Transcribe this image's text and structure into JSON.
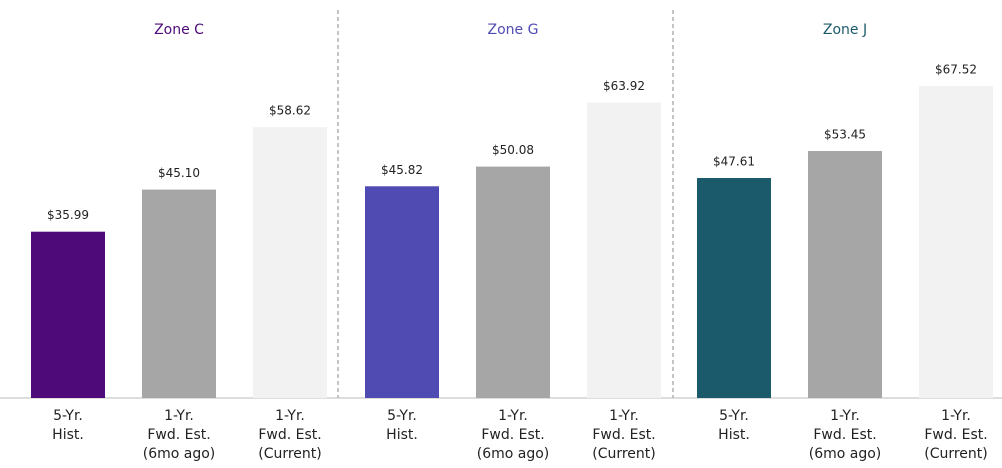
{
  "chart_data": [
    {
      "type": "bar",
      "title": "Zone C",
      "categories": [
        [
          "5-Yr.",
          "Hist."
        ],
        [
          "1-Yr.",
          "Fwd. Est.",
          "(6mo ago)"
        ],
        [
          "1-Yr.",
          "Fwd. Est.",
          "(Current)"
        ]
      ],
      "values": [
        35.99,
        45.1,
        58.62
      ],
      "value_labels": [
        "$35.99",
        "$45.10",
        "$58.62"
      ],
      "colors": [
        "#4e0a78",
        "#a6a6a6",
        "#f2f2f2"
      ]
    },
    {
      "type": "bar",
      "title": "Zone G",
      "categories": [
        [
          "5-Yr.",
          "Hist."
        ],
        [
          "1-Yr.",
          "Fwd. Est.",
          "(6mo ago)"
        ],
        [
          "1-Yr.",
          "Fwd. Est.",
          "(Current)"
        ]
      ],
      "values": [
        45.82,
        50.08,
        63.92
      ],
      "value_labels": [
        "$45.82",
        "$50.08",
        "$63.92"
      ],
      "colors": [
        "#4f4bb3",
        "#a6a6a6",
        "#f2f2f2"
      ]
    },
    {
      "type": "bar",
      "title": "Zone J",
      "categories": [
        [
          "5-Yr.",
          "Hist."
        ],
        [
          "1-Yr.",
          "Fwd. Est.",
          "(6mo ago)"
        ],
        [
          "1-Yr.",
          "Fwd. Est.",
          "(Current)"
        ]
      ],
      "values": [
        47.61,
        53.45,
        67.52
      ],
      "value_labels": [
        "$47.61",
        "$53.45",
        "$67.52"
      ],
      "colors": [
        "#1b5a6b",
        "#a6a6a6",
        "#f2f2f2"
      ]
    }
  ]
}
